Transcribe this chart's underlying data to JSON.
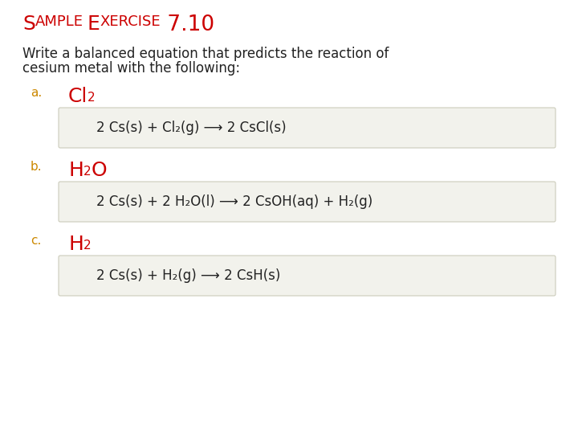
{
  "title_color": "#cc0000",
  "body_color": "#222222",
  "label_letter_color": "#cc8800",
  "label_formula_color": "#cc0000",
  "box_color": "#f2f2ec",
  "box_edge_color": "#ccccbb",
  "background_color": "#ffffff",
  "title_parts": [
    {
      "text": "S",
      "size": 18,
      "small": false
    },
    {
      "text": "AMPLE",
      "size": 13,
      "small": true
    },
    {
      "text": " ",
      "size": 18,
      "small": false
    },
    {
      "text": "E",
      "size": 18,
      "small": false
    },
    {
      "text": "XERCISE",
      "size": 13,
      "small": true
    },
    {
      "text": " 7.10",
      "size": 20,
      "small": false
    }
  ],
  "body_line1": "Write a balanced equation that predicts the reaction of",
  "body_line2": "cesium metal with the following:",
  "items": [
    {
      "letter": "a.",
      "formula_parts": [
        {
          "text": "Cl",
          "sub": false
        },
        {
          "text": "2",
          "sub": true
        }
      ],
      "eq_latex": "2 Cs(s) + Cl₂(g) ⟶ 2 CsCl(s)"
    },
    {
      "letter": "b.",
      "formula_parts": [
        {
          "text": "H",
          "sub": false
        },
        {
          "text": "2",
          "sub": true
        },
        {
          "text": "O",
          "sub": false
        }
      ],
      "eq_latex": "2 Cs(s) + 2 H₂O(l) ⟶ 2 CsOH(aq) + H₂(g)"
    },
    {
      "letter": "c.",
      "formula_parts": [
        {
          "text": "H",
          "sub": false
        },
        {
          "text": "2",
          "sub": true
        }
      ],
      "eq_latex": "2 Cs(s) + H₂(g) ⟶ 2 CsH(s)"
    }
  ],
  "font_size_title_large": 18,
  "font_size_title_small": 13,
  "font_size_body": 12,
  "font_size_label_letter": 11,
  "font_size_formula_main": 18,
  "font_size_formula_sub": 11,
  "font_size_eq": 12
}
